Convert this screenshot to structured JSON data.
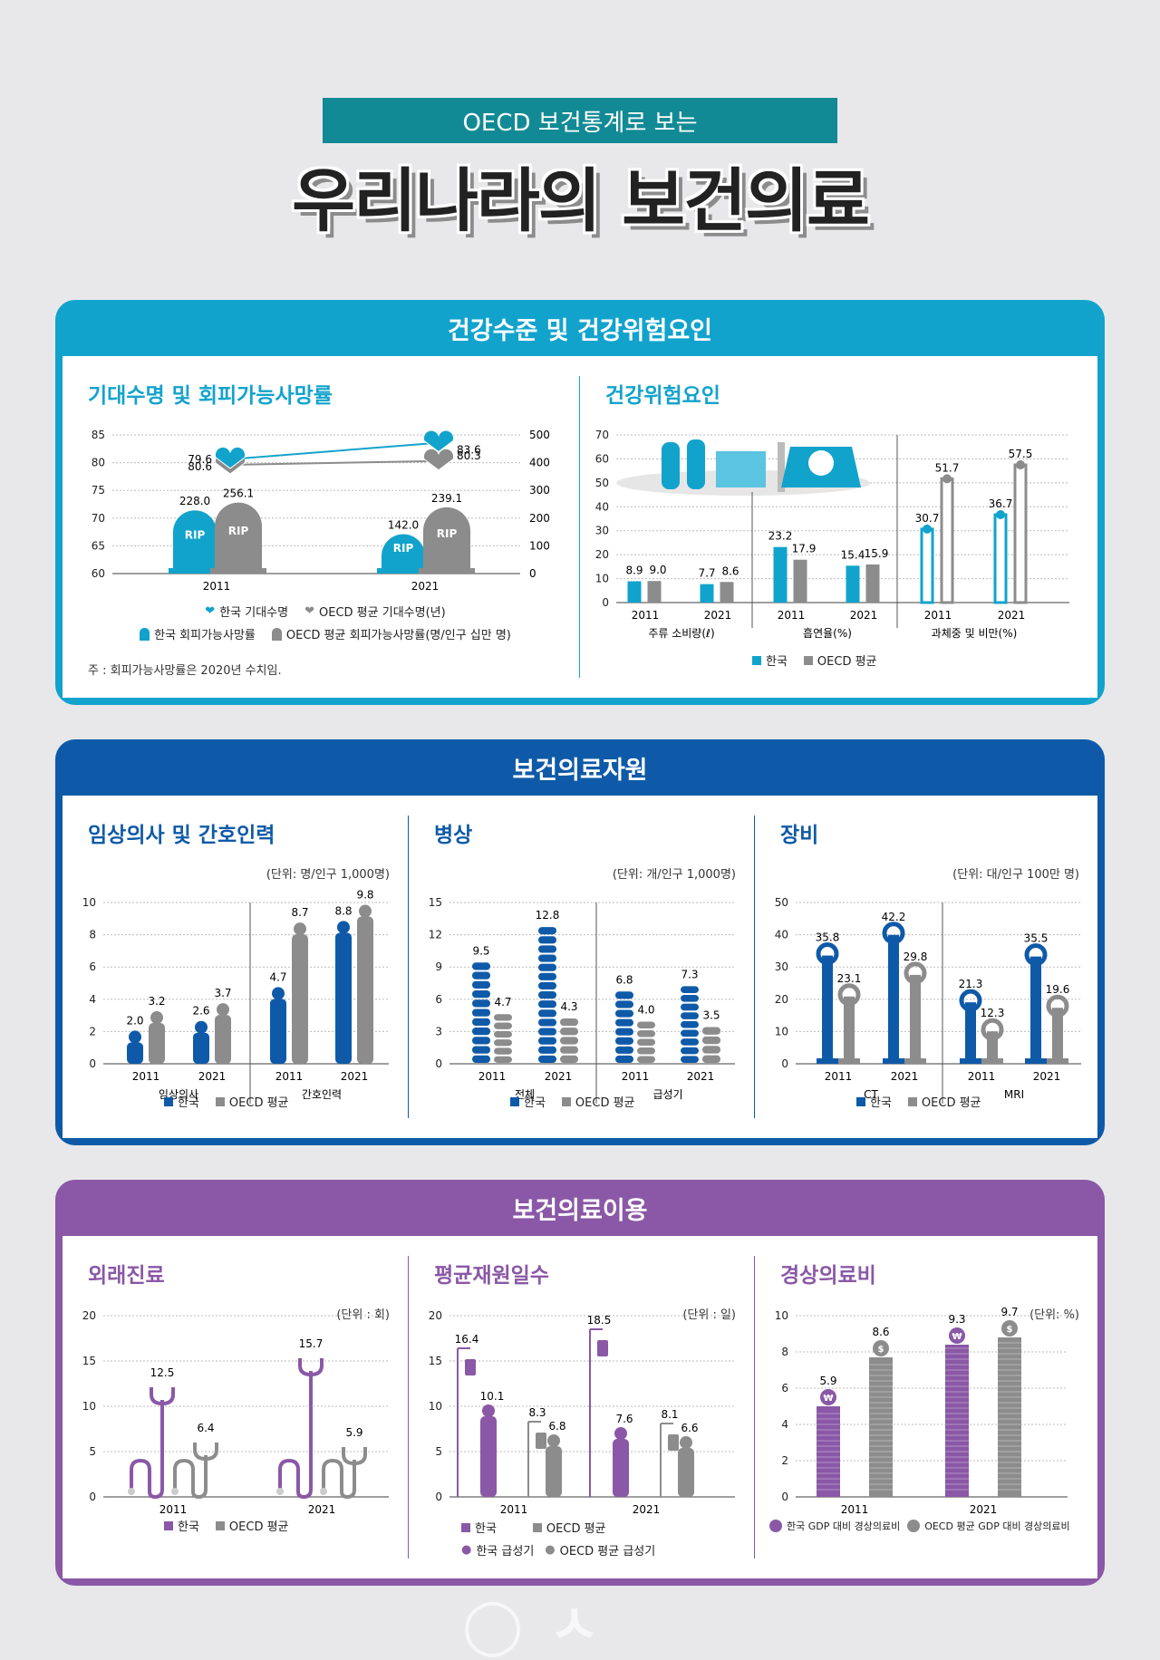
{
  "header": {
    "banner": "OECD 보건통계로 보는",
    "title": "우리나라의 보건의료"
  },
  "colors": {
    "teal": "#12a3cc",
    "blue": "#0f5aa8",
    "purple": "#8a58a6",
    "gray": "#8c8c8c"
  },
  "sections": {
    "s1": "건강수준 및 건강위험요인",
    "s2": "보건의료자원",
    "s3": "보건의료이용"
  },
  "panels": {
    "life": {
      "title": "기대수명 및 회피가능사망률",
      "note": "주 : 회피가능사망률은 2020년 수치임.",
      "legend": [
        "한국 기대수명",
        "OECD 평균 기대수명(년)",
        "한국 회피가능사망률",
        "OECD 평균 회피가능사망률(명/인구 십만 명)"
      ]
    },
    "risk": {
      "title": "건강위험요인",
      "legend": [
        "한국",
        "OECD 평균"
      ],
      "groups": [
        "주류 소비량(ℓ)",
        "흡연율(%)",
        "과체중 및 비만(%)"
      ]
    },
    "doctors": {
      "title": "임상의사 및 간호인력",
      "unit": "(단위: 명/인구 1,000명)",
      "legend": [
        "한국",
        "OECD 평균"
      ]
    },
    "beds": {
      "title": "병상",
      "unit": "(단위: 개/인구 1,000명)",
      "legend": [
        "한국",
        "OECD 평균"
      ]
    },
    "equip": {
      "title": "장비",
      "unit": "(단위: 대/인구 100만 명)",
      "legend": [
        "한국",
        "OECD 평균"
      ]
    },
    "visits": {
      "title": "외래진료",
      "unit": "(단위 : 회)",
      "legend": [
        "한국",
        "OECD 평균"
      ]
    },
    "alos": {
      "title": "평균재원일수",
      "unit": "(단위 : 일)",
      "legend": [
        "한국",
        "OECD 평균",
        "한국 급성기",
        "OECD 평균 급성기"
      ]
    },
    "spend": {
      "title": "경상의료비",
      "unit": "(단위: %)",
      "legend": [
        "한국 GDP 대비 경상의료비",
        "OECD 평균 GDP 대비 경상의료비"
      ]
    }
  },
  "chart_data": [
    {
      "id": "life",
      "type": "bar",
      "x": [
        "2011",
        "2021"
      ],
      "yticks": [
        60,
        65,
        70,
        75,
        80,
        85
      ],
      "y2ticks": [
        0,
        100,
        200,
        300,
        400,
        500
      ],
      "ylim": [
        60,
        85
      ],
      "y2lim": [
        0,
        500
      ],
      "series": [
        {
          "name": "한국 기대수명",
          "type": "line",
          "values": [
            80.6,
            83.6
          ]
        },
        {
          "name": "OECD 평균 기대수명(년)",
          "type": "line",
          "values": [
            79.6,
            80.3
          ]
        },
        {
          "name": "한국 회피가능사망률",
          "values": [
            228.0,
            142.0
          ]
        },
        {
          "name": "OECD 평균 회피가능사망률(명/인구 십만 명)",
          "values": [
            256.1,
            239.1
          ]
        }
      ],
      "labels": {
        "bar": "RIP"
      }
    },
    {
      "id": "risk",
      "type": "bar",
      "ylim": [
        0,
        70
      ],
      "yticks": [
        0,
        10,
        20,
        30,
        40,
        50,
        60,
        70
      ],
      "x": [
        "2011",
        "2021",
        "2011",
        "2021",
        "2011",
        "2021"
      ],
      "groups": [
        "주류 소비량(ℓ)",
        "흡연율(%)",
        "과체중 및 비만(%)"
      ],
      "series": [
        {
          "name": "한국",
          "values": [
            8.9,
            7.7,
            23.2,
            15.4,
            30.7,
            36.7
          ]
        },
        {
          "name": "OECD 평균",
          "values": [
            9.0,
            8.6,
            17.9,
            15.9,
            51.7,
            57.5
          ]
        }
      ]
    },
    {
      "id": "doctors",
      "type": "bar",
      "ylim": [
        0,
        10
      ],
      "yticks": [
        0,
        2,
        4,
        6,
        8,
        10
      ],
      "x": [
        "2011",
        "2021",
        "2011",
        "2021"
      ],
      "groups": [
        "임상의사",
        "간호인력"
      ],
      "series": [
        {
          "name": "한국",
          "values": [
            2.0,
            2.6,
            4.7,
            8.8
          ]
        },
        {
          "name": "OECD 평균",
          "values": [
            3.2,
            3.7,
            8.7,
            9.8
          ]
        }
      ]
    },
    {
      "id": "beds",
      "type": "bar",
      "ylim": [
        0,
        15
      ],
      "yticks": [
        0,
        3,
        6,
        9,
        12,
        15
      ],
      "x": [
        "2011",
        "2021",
        "2011",
        "2021"
      ],
      "groups": [
        "전체",
        "급성기"
      ],
      "series": [
        {
          "name": "한국",
          "values": [
            9.5,
            12.8,
            6.8,
            7.3
          ]
        },
        {
          "name": "OECD 평균",
          "values": [
            4.7,
            4.3,
            4.0,
            3.5
          ]
        }
      ]
    },
    {
      "id": "equip",
      "type": "bar",
      "ylim": [
        0,
        50
      ],
      "yticks": [
        0,
        10,
        20,
        30,
        40,
        50
      ],
      "x": [
        "2011",
        "2021",
        "2011",
        "2021"
      ],
      "groups": [
        "CT",
        "MRI"
      ],
      "series": [
        {
          "name": "한국",
          "values": [
            35.8,
            42.2,
            21.3,
            35.5
          ]
        },
        {
          "name": "OECD 평균",
          "values": [
            23.1,
            29.8,
            12.3,
            19.6
          ]
        }
      ]
    },
    {
      "id": "visits",
      "type": "bar",
      "ylim": [
        0,
        20
      ],
      "yticks": [
        0,
        5,
        10,
        15,
        20
      ],
      "x": [
        "2011",
        "2021"
      ],
      "series": [
        {
          "name": "한국",
          "values": [
            12.5,
            15.7
          ]
        },
        {
          "name": "OECD 평균",
          "values": [
            6.4,
            5.9
          ]
        }
      ]
    },
    {
      "id": "alos",
      "type": "bar",
      "ylim": [
        0,
        20
      ],
      "yticks": [
        0,
        5,
        10,
        15,
        20
      ],
      "x": [
        "2011",
        "2021"
      ],
      "series": [
        {
          "name": "한국",
          "values": [
            16.4,
            18.5
          ]
        },
        {
          "name": "한국 급성기",
          "values": [
            10.1,
            7.6
          ]
        },
        {
          "name": "OECD 평균",
          "values": [
            8.3,
            8.1
          ]
        },
        {
          "name": "OECD 평균 급성기",
          "values": [
            6.8,
            6.6
          ]
        }
      ]
    },
    {
      "id": "spend",
      "type": "bar",
      "ylim": [
        0,
        10
      ],
      "yticks": [
        0,
        2,
        4,
        6,
        8,
        10
      ],
      "x": [
        "2011",
        "2021"
      ],
      "series": [
        {
          "name": "한국 GDP 대비 경상의료비",
          "values": [
            5.9,
            9.3
          ]
        },
        {
          "name": "OECD 평균 GDP 대비 경상의료비",
          "values": [
            8.6,
            9.7
          ]
        }
      ]
    }
  ]
}
